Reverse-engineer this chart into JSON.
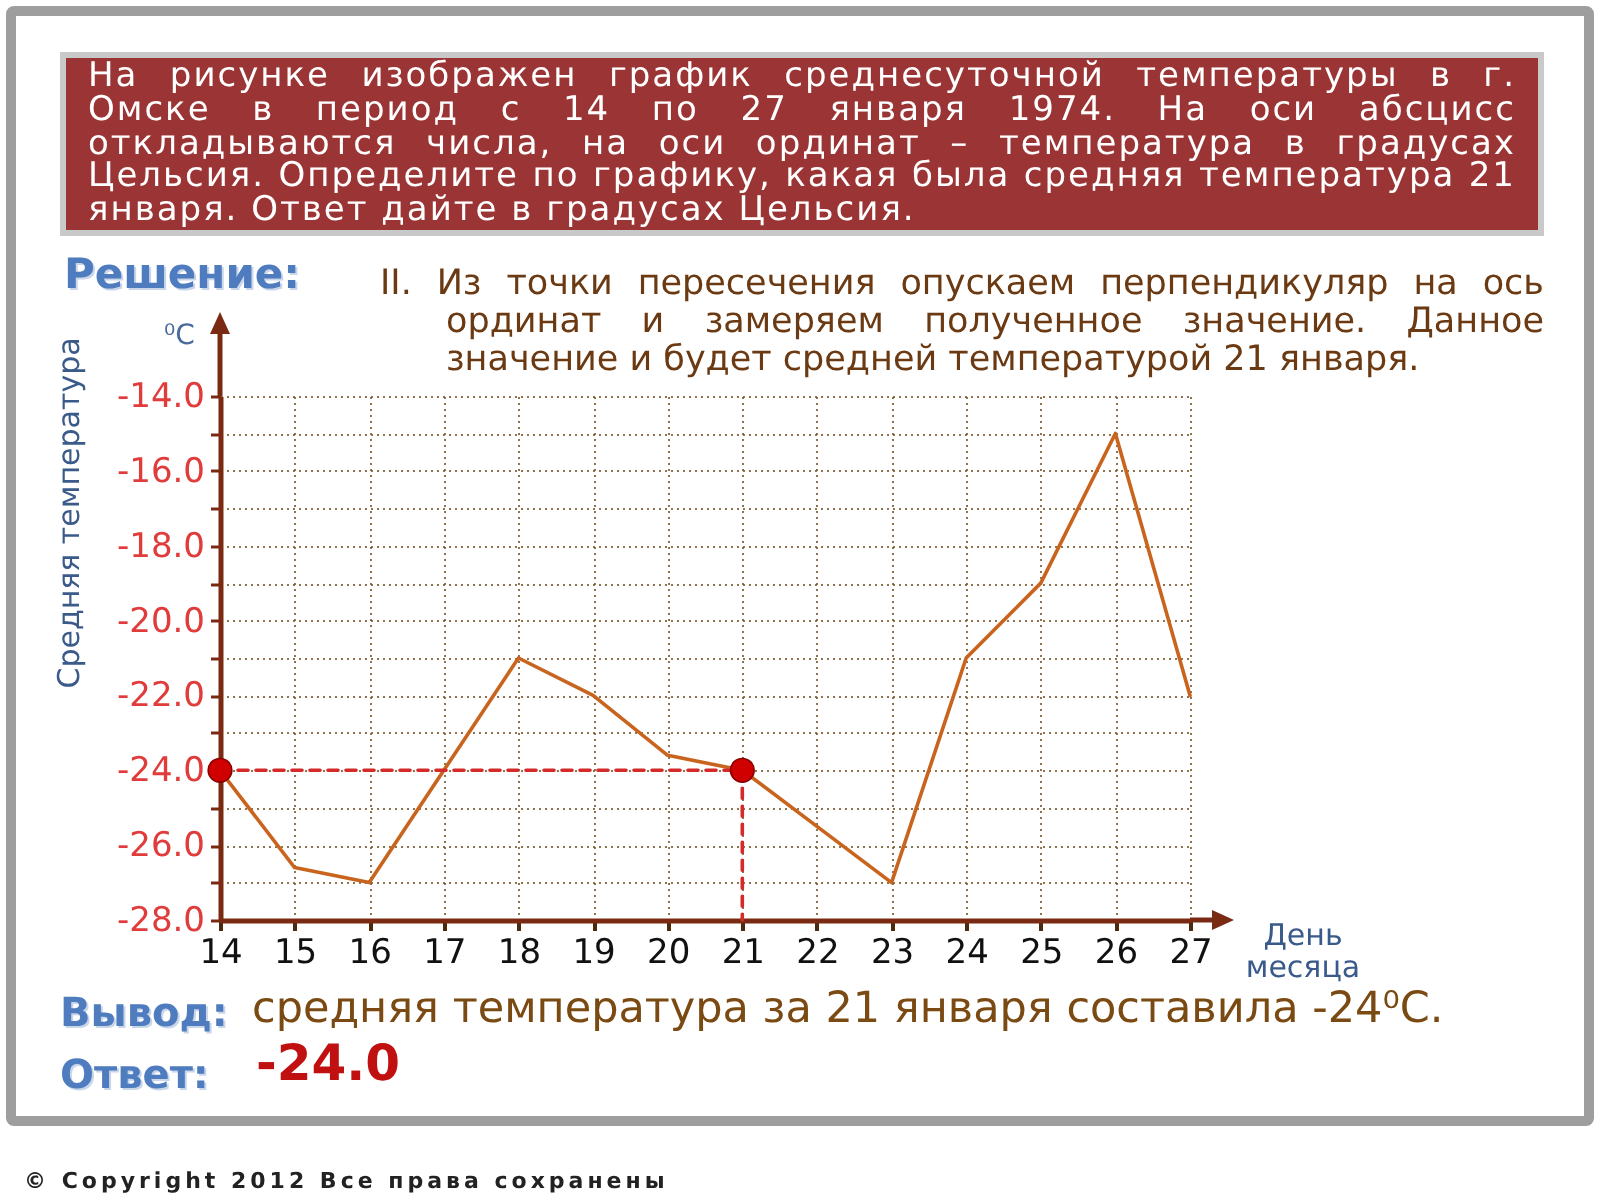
{
  "chart_data": {
    "type": "line",
    "title": "На рисунке изображен график среднесуточной температуры в г. Омске в период с 14 по 27 января 1974. На оси абсцисс откладываются числа, на оси ординат – температура в градусах Цельсия. Определите по графику, какая была средняя температура 21 января. Ответ дайте в градусах Цельсия.",
    "xlabel": "День месяца",
    "ylabel": "Средняя температура",
    "annotations": [
      "Решение:",
      "II. Из точки пересечения опускаем перпендикуляр на ось ординат и замеряем полученное значение. Данное значение и будет средней температурой 21 января.",
      "⁰C",
      "Вывод:",
      "средняя температура за 21 января составила -24⁰C.",
      "Ответ:",
      "-24.0",
      "© Copyright 2012 Все права сохранены"
    ],
    "x": [
      14,
      15,
      16,
      17,
      18,
      19,
      20,
      21,
      22,
      23,
      24,
      25,
      26,
      27
    ],
    "series": [
      {
        "color": "#c8641e",
        "values": [
          -24,
          -26.6,
          -27,
          -24,
          -21,
          -22,
          -23.6,
          -24,
          -25.5,
          -27,
          -21,
          -19,
          -15,
          -22
        ]
      },
      {
        "type": "line",
        "values": [
          -24,
          -24,
          -24,
          -24,
          -24,
          -24,
          -24,
          -24,
          null,
          null,
          null,
          null,
          null,
          null
        ],
        "color": "#d42a2a",
        "line_style": "dashed"
      },
      {
        "type": "line",
        "x": [
          21,
          21
        ],
        "values": [
          -24,
          -28
        ],
        "color": "#d42a2a",
        "line_style": "dashed"
      },
      {
        "type": "scatter",
        "values": [
          -24,
          null,
          null,
          null,
          null,
          null,
          null,
          -24,
          null,
          null,
          null,
          null,
          null,
          null
        ],
        "color": "#d00000",
        "marker": "circle"
      }
    ],
    "xlim": [
      14,
      27
    ],
    "xticks": [
      14,
      15,
      16,
      17,
      18,
      19,
      20,
      21,
      22,
      23,
      24,
      25,
      26,
      27
    ],
    "ylim": [
      -28,
      -14
    ],
    "yticks": [
      {
        "value": -28,
        "label": "-28.0"
      },
      {
        "value": -27,
        "label": null
      },
      {
        "value": -26,
        "label": "-26.0"
      },
      {
        "value": -25,
        "label": null
      },
      {
        "value": -24,
        "label": "-24.0"
      },
      {
        "value": -23,
        "label": null
      },
      {
        "value": -22,
        "label": "-22.0"
      },
      {
        "value": -21,
        "label": null
      },
      {
        "value": -20,
        "label": "-20.0"
      },
      {
        "value": -19,
        "label": null
      },
      {
        "value": -18,
        "label": "-18.0"
      },
      {
        "value": -17,
        "label": null
      },
      {
        "value": -16,
        "label": "-16.0"
      },
      {
        "value": -15,
        "label": null
      },
      {
        "value": -14,
        "label": "-14.0"
      }
    ],
    "grid": true
  }
}
